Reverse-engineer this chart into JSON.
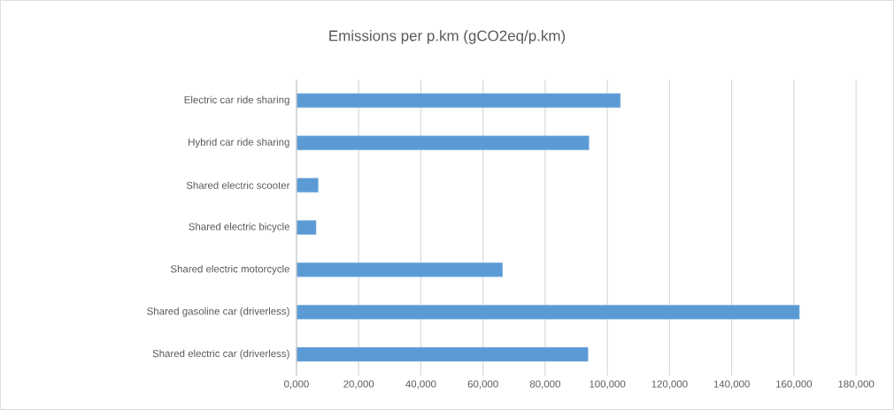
{
  "chart_data": {
    "type": "bar",
    "orientation": "horizontal",
    "title": "Emissions per p.km (gCO2eq/p.km)",
    "categories": [
      "Electric car ride sharing",
      "Hybrid car ride sharing",
      "Shared electric scooter",
      "Shared electric bicycle",
      "Shared electric motorcycle",
      "Shared gasoline car (driverless)",
      "Shared electric car (driverless)"
    ],
    "values": [
      104200,
      94100,
      7000,
      6300,
      66300,
      161800,
      93800
    ],
    "color": "#5b9bd5",
    "xlim": [
      0,
      180000
    ],
    "xticks": [
      {
        "value": 0,
        "label": "0,000"
      },
      {
        "value": 20000,
        "label": "20,000"
      },
      {
        "value": 40000,
        "label": "40,000"
      },
      {
        "value": 60000,
        "label": "60,000"
      },
      {
        "value": 80000,
        "label": "80,000"
      },
      {
        "value": 100000,
        "label": "100,000"
      },
      {
        "value": 120000,
        "label": "120,000"
      },
      {
        "value": 140000,
        "label": "140,000"
      },
      {
        "value": 160000,
        "label": "160,000"
      },
      {
        "value": 180000,
        "label": "180,000"
      }
    ],
    "grid": "x"
  }
}
